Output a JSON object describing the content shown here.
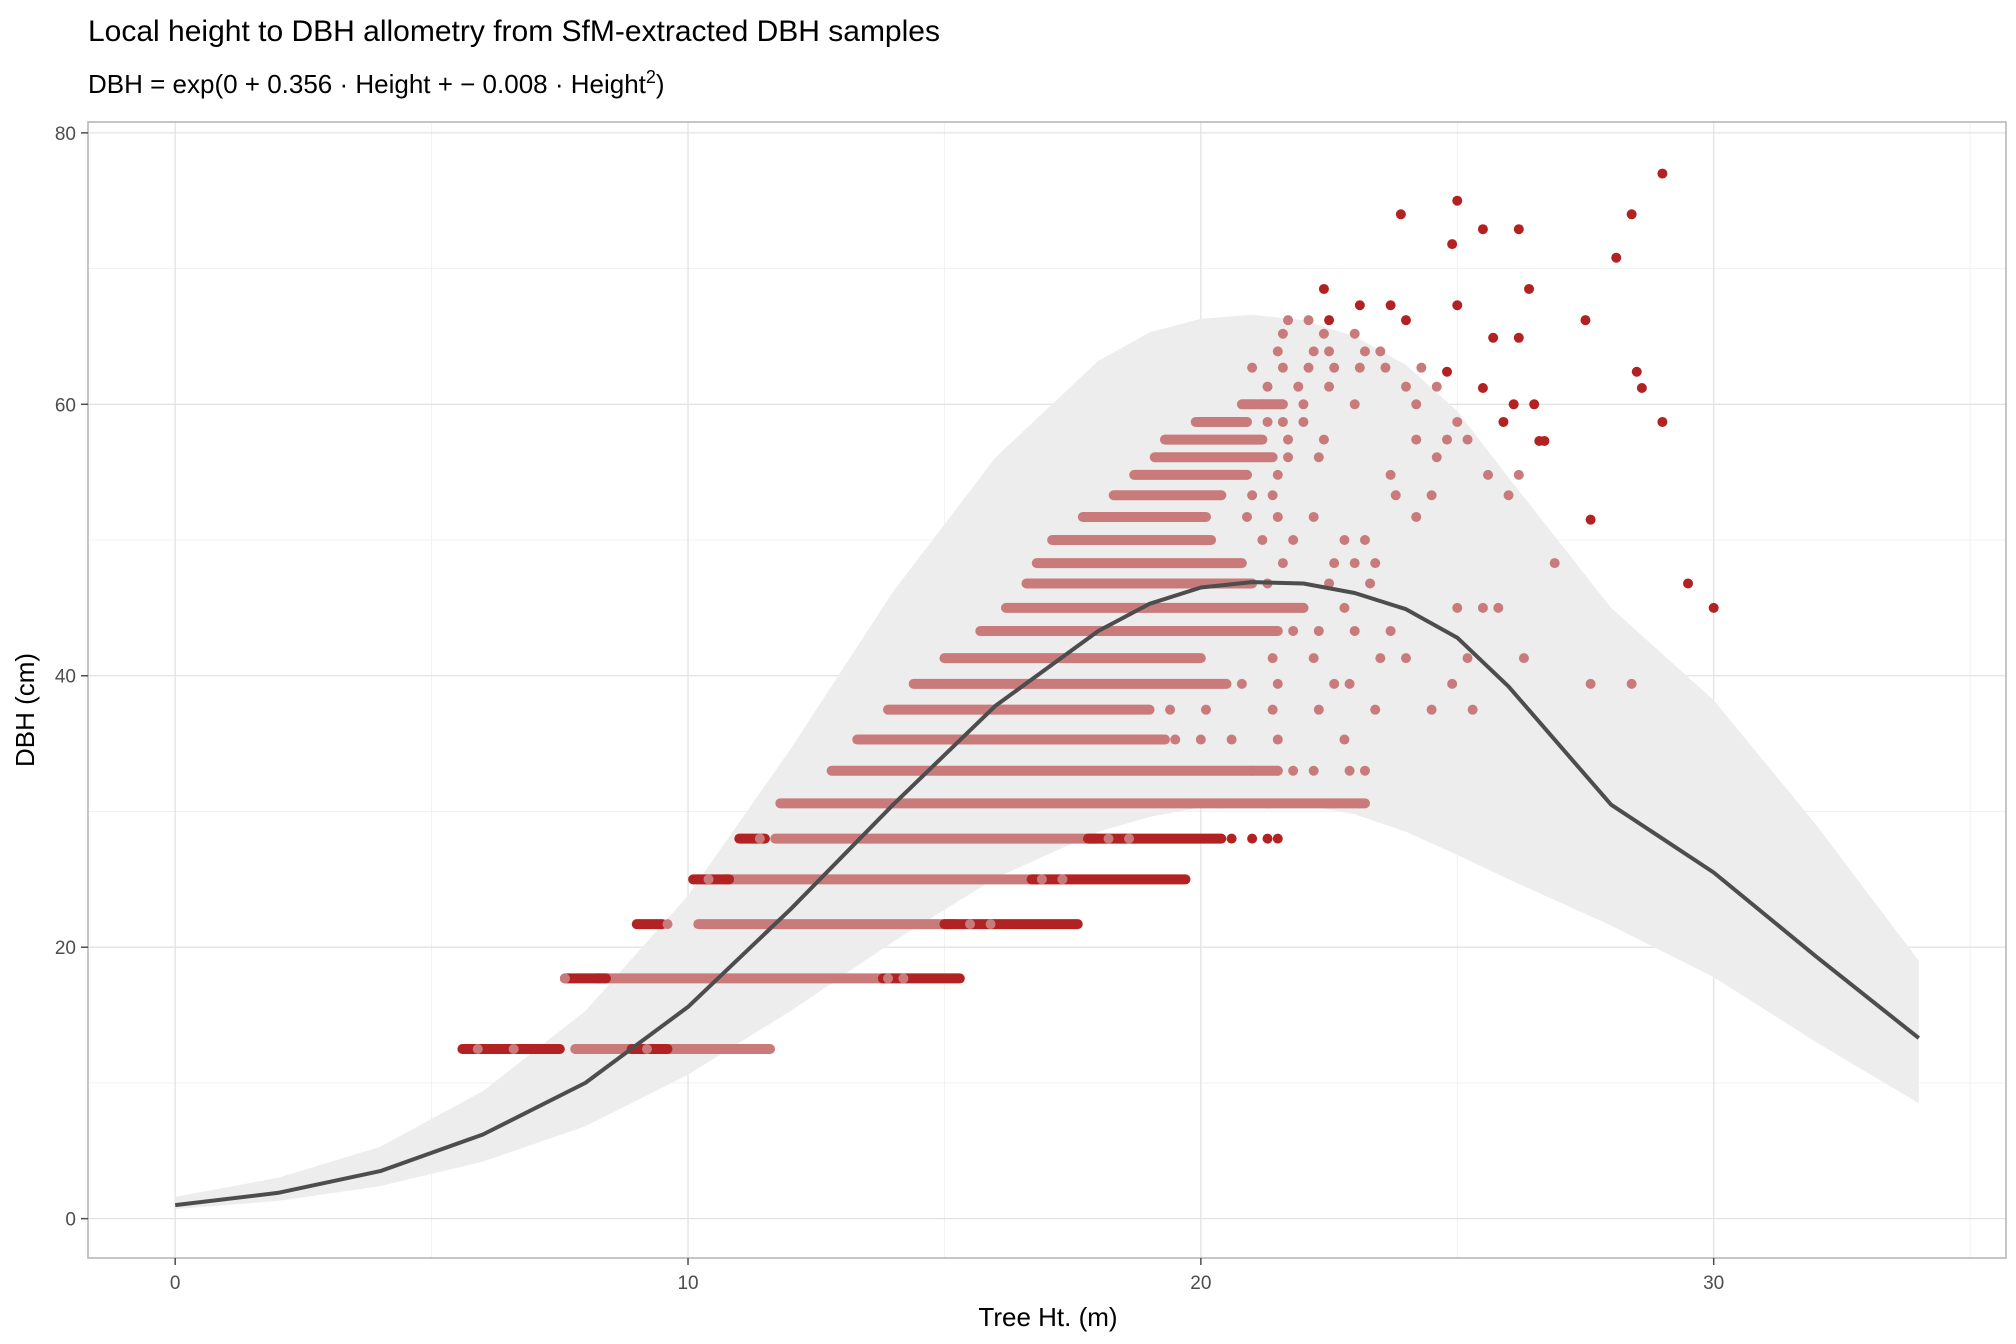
{
  "colors": {
    "band": "#ededed",
    "curve": "#4d4d4d",
    "point_inlier": "#c97b7b",
    "point_outlier": "#b22222",
    "panel_border": "#b3b3b3",
    "grid_major": "#e3e3e3",
    "grid_minor": "#f1f1f1"
  },
  "chart_data": {
    "type": "scatter",
    "title": "Local height to DBH allometry from SfM-extracted DBH samples",
    "subtitle": {
      "prefix": "DBH = exp(0 + 0.356 · Height + − 0.008 · Height",
      "sup": "2",
      "suffix": ")"
    },
    "xlabel": "Tree Ht. (m)",
    "ylabel": "DBH (cm)",
    "xlim": [
      -1.7,
      35.7
    ],
    "ylim": [
      -2.9,
      80.8
    ],
    "x_ticks": [
      0,
      10,
      20,
      30
    ],
    "x_tick_labels": [
      "0",
      "10",
      "20",
      "30"
    ],
    "y_ticks": [
      0,
      20,
      40,
      60,
      80
    ],
    "y_tick_labels": [
      "0",
      "20",
      "40",
      "60",
      "80"
    ],
    "grid": true,
    "legend": "none",
    "fit_curve": {
      "x": [
        0,
        2,
        4,
        6,
        8,
        10,
        12,
        14,
        16,
        18,
        19,
        20,
        21,
        22,
        23,
        24,
        25,
        26,
        28,
        30,
        32,
        34
      ],
      "y": [
        1.0,
        1.9,
        3.5,
        6.2,
        10.0,
        15.6,
        22.8,
        30.5,
        37.8,
        43.3,
        45.3,
        46.5,
        46.9,
        46.8,
        46.1,
        44.9,
        42.8,
        39.2,
        30.5,
        25.5,
        19.3,
        13.3
      ]
    },
    "prediction_band": {
      "x": [
        0,
        2,
        4,
        6,
        8,
        10,
        12,
        14,
        16,
        18,
        19,
        20,
        21,
        22,
        23,
        24,
        25,
        26,
        28,
        30,
        32,
        34
      ],
      "lower": [
        0.7,
        1.3,
        2.4,
        4.2,
        6.8,
        10.6,
        15.3,
        20.4,
        25.1,
        28.5,
        29.6,
        30.3,
        30.6,
        30.5,
        29.8,
        28.5,
        26.8,
        25.0,
        21.6,
        17.8,
        13.0,
        8.5
      ],
      "upper": [
        1.6,
        3.0,
        5.3,
        9.4,
        15.3,
        23.8,
        34.6,
        46.2,
        56.1,
        63.2,
        65.3,
        66.3,
        66.6,
        66.2,
        65.0,
        62.9,
        59.5,
        54.6,
        45.0,
        38.2,
        29.0,
        19.0
      ]
    },
    "series": [
      {
        "category": "inlier",
        "rows": [
          {
            "y": 12.5,
            "x_ranges": [
              [
                7.8,
                11.6
              ]
            ]
          },
          {
            "y": 17.7,
            "x_ranges": [
              [
                8.2,
                13.8
              ]
            ]
          },
          {
            "y": 21.7,
            "x_ranges": [
              [
                10.2,
                15.2
              ]
            ]
          },
          {
            "y": 25.0,
            "x_ranges": [
              [
                10.7,
                16.8
              ]
            ]
          },
          {
            "y": 28.0,
            "x_ranges": [
              [
                11.7,
                18.0
              ]
            ]
          },
          {
            "y": 30.6,
            "x_ranges": [
              [
                11.8,
                23.2
              ]
            ]
          },
          {
            "y": 33.0,
            "x_ranges": [
              [
                12.8,
                21.5
              ]
            ]
          },
          {
            "y": 35.3,
            "x_ranges": [
              [
                13.3,
                19.3
              ]
            ]
          },
          {
            "y": 37.5,
            "x_ranges": [
              [
                13.9,
                19.0
              ]
            ]
          },
          {
            "y": 39.4,
            "x_ranges": [
              [
                14.4,
                20.5
              ]
            ]
          },
          {
            "y": 41.3,
            "x_ranges": [
              [
                15.0,
                20.0
              ]
            ]
          },
          {
            "y": 43.3,
            "x_ranges": [
              [
                15.7,
                21.5
              ]
            ]
          },
          {
            "y": 45.0,
            "x_ranges": [
              [
                16.2,
                22.0
              ]
            ]
          },
          {
            "y": 46.8,
            "x_ranges": [
              [
                16.6,
                21.0
              ]
            ]
          },
          {
            "y": 48.3,
            "x_ranges": [
              [
                16.8,
                20.8
              ]
            ]
          },
          {
            "y": 50.0,
            "x_ranges": [
              [
                17.1,
                20.2
              ]
            ]
          },
          {
            "y": 51.7,
            "x_ranges": [
              [
                17.7,
                20.1
              ]
            ]
          },
          {
            "y": 53.3,
            "x_ranges": [
              [
                18.3,
                20.4
              ]
            ]
          },
          {
            "y": 54.8,
            "x_ranges": [
              [
                18.7,
                20.9
              ]
            ]
          },
          {
            "y": 56.1,
            "x_ranges": [
              [
                19.1,
                21.4
              ]
            ]
          },
          {
            "y": 57.4,
            "x_ranges": [
              [
                19.3,
                21.2
              ]
            ]
          },
          {
            "y": 58.7,
            "x_ranges": [
              [
                19.9,
                20.9
              ]
            ]
          },
          {
            "y": 60.0,
            "x_ranges": [
              [
                20.8,
                21.6
              ]
            ]
          }
        ],
        "points": [
          [
            5.9,
            12.5
          ],
          [
            6.6,
            12.5
          ],
          [
            8.5,
            12.5
          ],
          [
            9.2,
            12.5
          ],
          [
            11.4,
            12.5
          ],
          [
            7.6,
            17.7
          ],
          [
            13.9,
            17.7
          ],
          [
            14.2,
            17.7
          ],
          [
            9.6,
            21.7
          ],
          [
            15.5,
            21.7
          ],
          [
            15.9,
            21.7
          ],
          [
            10.4,
            25.0
          ],
          [
            16.9,
            25.0
          ],
          [
            17.3,
            25.0
          ],
          [
            11.4,
            28.0
          ],
          [
            18.2,
            28.0
          ],
          [
            18.6,
            28.0
          ],
          [
            19.8,
            30.6
          ],
          [
            20.4,
            30.6
          ],
          [
            21.3,
            30.6
          ],
          [
            22.6,
            30.6
          ],
          [
            23.1,
            30.6
          ],
          [
            21.0,
            33.0
          ],
          [
            21.5,
            33.0
          ],
          [
            21.8,
            33.0
          ],
          [
            22.2,
            33.0
          ],
          [
            22.9,
            33.0
          ],
          [
            23.2,
            33.0
          ],
          [
            19.5,
            35.3
          ],
          [
            20.0,
            35.3
          ],
          [
            20.6,
            35.3
          ],
          [
            21.5,
            35.3
          ],
          [
            22.8,
            35.3
          ],
          [
            19.4,
            37.5
          ],
          [
            20.1,
            37.5
          ],
          [
            21.4,
            37.5
          ],
          [
            22.3,
            37.5
          ],
          [
            23.4,
            37.5
          ],
          [
            24.5,
            37.5
          ],
          [
            25.3,
            37.5
          ],
          [
            20.8,
            39.4
          ],
          [
            21.5,
            39.4
          ],
          [
            22.6,
            39.4
          ],
          [
            22.9,
            39.4
          ],
          [
            24.9,
            39.4
          ],
          [
            27.6,
            39.4
          ],
          [
            28.4,
            39.4
          ],
          [
            21.4,
            41.3
          ],
          [
            22.2,
            41.3
          ],
          [
            23.5,
            41.3
          ],
          [
            24.0,
            41.3
          ],
          [
            25.2,
            41.3
          ],
          [
            26.3,
            41.3
          ],
          [
            20.6,
            43.3
          ],
          [
            21.8,
            43.3
          ],
          [
            22.3,
            43.3
          ],
          [
            23.0,
            43.3
          ],
          [
            23.7,
            43.3
          ],
          [
            21.7,
            45.0
          ],
          [
            22.0,
            45.0
          ],
          [
            22.8,
            45.0
          ],
          [
            25.0,
            45.0
          ],
          [
            25.5,
            45.0
          ],
          [
            25.8,
            45.0
          ],
          [
            21.3,
            46.8
          ],
          [
            22.5,
            46.8
          ],
          [
            23.3,
            46.8
          ],
          [
            21.6,
            48.3
          ],
          [
            22.6,
            48.3
          ],
          [
            23.0,
            48.3
          ],
          [
            23.4,
            48.3
          ],
          [
            26.9,
            48.3
          ],
          [
            21.2,
            50.0
          ],
          [
            21.8,
            50.0
          ],
          [
            22.8,
            50.0
          ],
          [
            23.2,
            50.0
          ],
          [
            20.9,
            51.7
          ],
          [
            21.5,
            51.7
          ],
          [
            22.2,
            51.7
          ],
          [
            24.2,
            51.7
          ],
          [
            21.0,
            53.3
          ],
          [
            21.4,
            53.3
          ],
          [
            23.8,
            53.3
          ],
          [
            24.5,
            53.3
          ],
          [
            26.0,
            53.3
          ],
          [
            21.5,
            54.8
          ],
          [
            23.7,
            54.8
          ],
          [
            25.6,
            54.8
          ],
          [
            26.2,
            54.8
          ],
          [
            21.7,
            56.1
          ],
          [
            22.3,
            56.1
          ],
          [
            24.6,
            56.1
          ],
          [
            21.7,
            57.4
          ],
          [
            22.4,
            57.4
          ],
          [
            24.2,
            57.4
          ],
          [
            24.8,
            57.4
          ],
          [
            25.2,
            57.4
          ],
          [
            21.3,
            58.7
          ],
          [
            21.6,
            58.7
          ],
          [
            22.0,
            58.7
          ],
          [
            25.0,
            58.7
          ],
          [
            21.2,
            60.0
          ],
          [
            22.0,
            60.0
          ],
          [
            23.0,
            60.0
          ],
          [
            24.2,
            60.0
          ],
          [
            21.3,
            61.3
          ],
          [
            21.9,
            61.3
          ],
          [
            22.5,
            61.3
          ],
          [
            24.0,
            61.3
          ],
          [
            24.6,
            61.3
          ],
          [
            21.0,
            62.7
          ],
          [
            21.6,
            62.7
          ],
          [
            22.1,
            62.7
          ],
          [
            22.6,
            62.7
          ],
          [
            23.1,
            62.7
          ],
          [
            23.6,
            62.7
          ],
          [
            24.3,
            62.7
          ],
          [
            21.5,
            63.9
          ],
          [
            22.2,
            63.9
          ],
          [
            22.5,
            63.9
          ],
          [
            23.2,
            63.9
          ],
          [
            23.5,
            63.9
          ],
          [
            21.6,
            65.2
          ],
          [
            22.4,
            65.2
          ],
          [
            23.0,
            65.2
          ],
          [
            21.7,
            66.2
          ],
          [
            22.1,
            66.2
          ]
        ]
      },
      {
        "category": "outlier",
        "rows": [
          {
            "y": 12.5,
            "x_ranges": [
              [
                5.6,
                7.5
              ],
              [
                8.9,
                9.6
              ]
            ]
          },
          {
            "y": 17.7,
            "x_ranges": [
              [
                7.6,
                8.4
              ],
              [
                13.8,
                15.3
              ]
            ]
          },
          {
            "y": 21.7,
            "x_ranges": [
              [
                9.0,
                9.5
              ],
              [
                15.0,
                17.6
              ]
            ]
          },
          {
            "y": 25.0,
            "x_ranges": [
              [
                10.1,
                10.8
              ],
              [
                16.7,
                19.7
              ]
            ]
          },
          {
            "y": 28.0,
            "x_ranges": [
              [
                11.0,
                11.5
              ],
              [
                17.8,
                20.4
              ]
            ]
          }
        ],
        "points": [
          [
            20.6,
            28.0
          ],
          [
            21.0,
            28.0
          ],
          [
            21.3,
            28.0
          ],
          [
            21.5,
            28.0
          ],
          [
            22.4,
            68.5
          ],
          [
            22.5,
            66.2
          ],
          [
            23.1,
            67.3
          ],
          [
            23.7,
            67.3
          ],
          [
            23.9,
            74.0
          ],
          [
            24.0,
            66.2
          ],
          [
            24.8,
            62.4
          ],
          [
            24.9,
            71.8
          ],
          [
            25.0,
            75.0
          ],
          [
            25.0,
            67.3
          ],
          [
            25.5,
            61.2
          ],
          [
            25.5,
            72.9
          ],
          [
            25.7,
            64.9
          ],
          [
            25.9,
            58.7
          ],
          [
            26.1,
            60.0
          ],
          [
            26.2,
            64.9
          ],
          [
            26.2,
            72.9
          ],
          [
            26.4,
            68.5
          ],
          [
            26.5,
            60.0
          ],
          [
            26.6,
            57.3
          ],
          [
            26.7,
            57.3
          ],
          [
            27.5,
            66.2
          ],
          [
            27.6,
            51.5
          ],
          [
            28.1,
            70.8
          ],
          [
            28.4,
            74.0
          ],
          [
            28.5,
            62.4
          ],
          [
            28.6,
            61.2
          ],
          [
            29.0,
            77.0
          ],
          [
            29.0,
            58.7
          ],
          [
            29.5,
            46.8
          ],
          [
            30.0,
            45.0
          ]
        ]
      }
    ]
  }
}
